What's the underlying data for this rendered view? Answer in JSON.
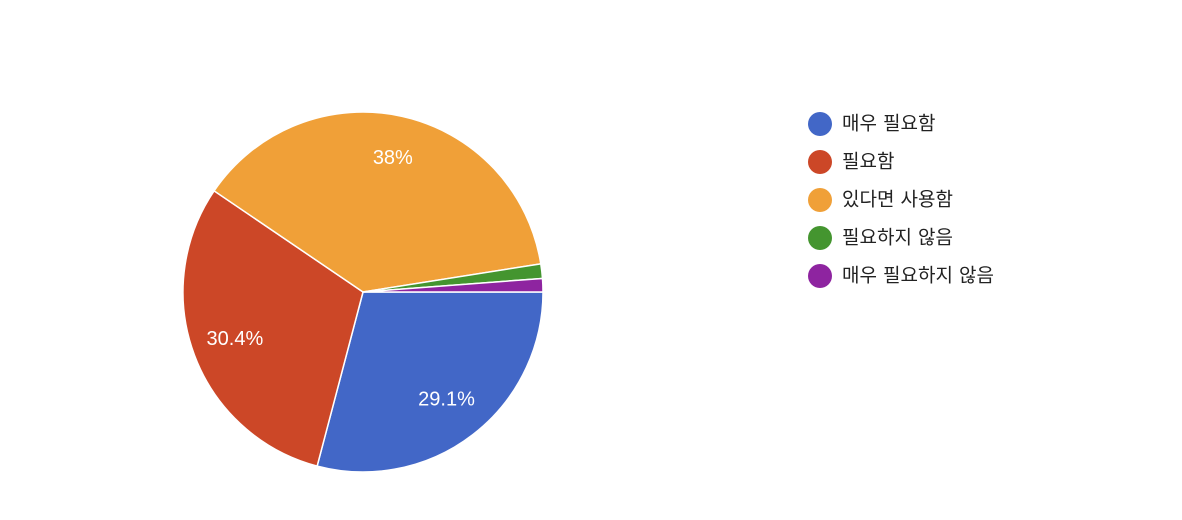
{
  "chart_data": {
    "type": "pie",
    "categories": [
      "매우 필요함",
      "필요함",
      "있다면 사용함",
      "필요하지 않음",
      "매우 필요하지 않음"
    ],
    "values": [
      29.1,
      30.4,
      38,
      1.3,
      1.2
    ],
    "value_labels": [
      "29.1%",
      "30.4%",
      "38%",
      null,
      null
    ],
    "colors": [
      "#4267c7",
      "#cc4727",
      "#f0a038",
      "#44952f",
      "#8e24a0"
    ]
  }
}
